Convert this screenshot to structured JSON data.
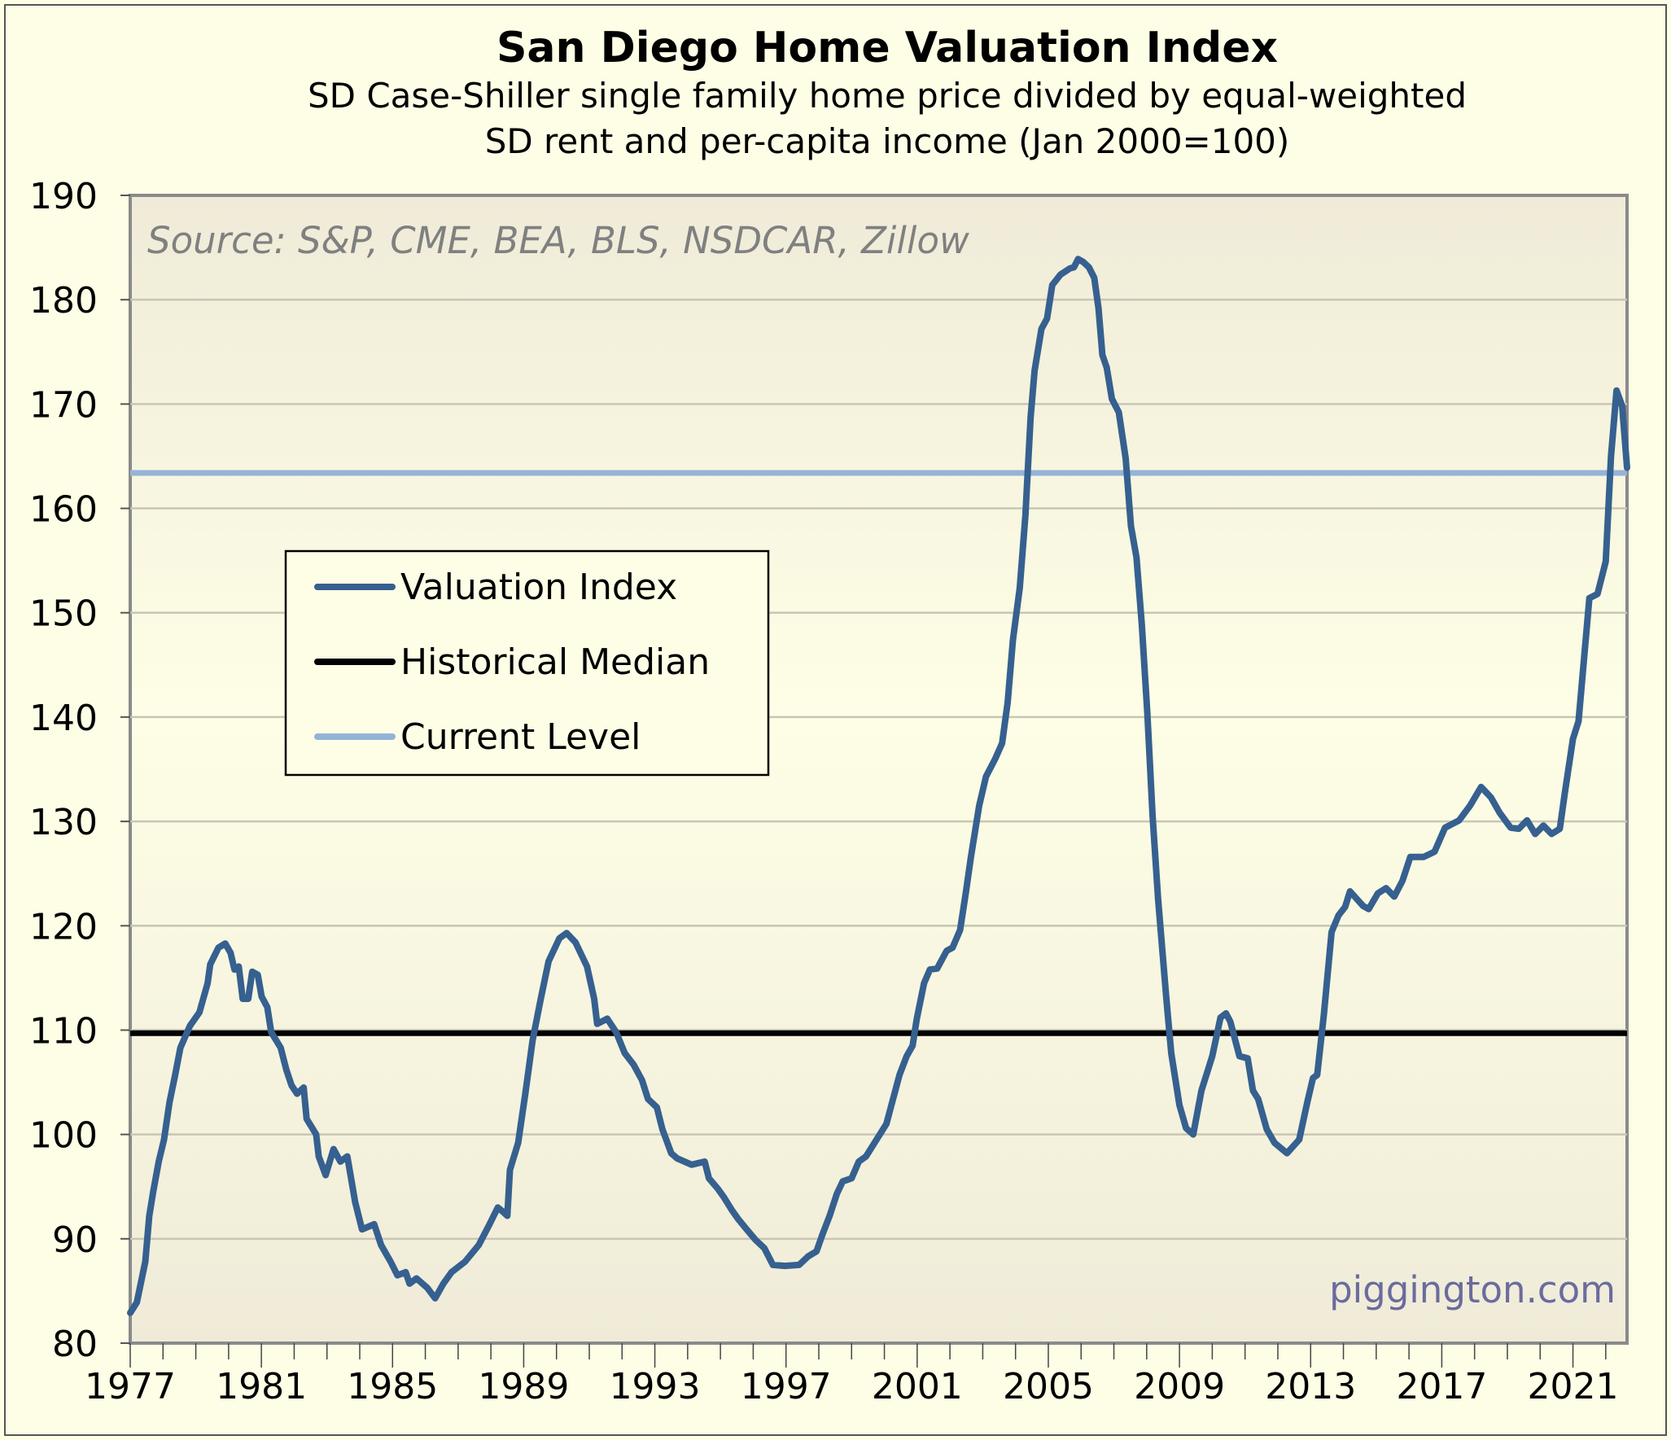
{
  "chart_data": {
    "type": "line",
    "title": "San Diego Home Valuation Index",
    "subtitle": [
      "SD Case-Shiller single family home price divided by equal-weighted",
      "SD rent and per-capita income (Jan 2000=100)"
    ],
    "source_note": "Source: S&P, CME, BEA, BLS, NSDCAR, Zillow",
    "watermark": "piggington.com",
    "xlabel": "",
    "ylabel": "",
    "xlim": [
      1977,
      2022.65
    ],
    "ylim": [
      80,
      190
    ],
    "x_ticks": [
      "1977",
      "1981",
      "1985",
      "1989",
      "1993",
      "1997",
      "2001",
      "2005",
      "2009",
      "2013",
      "2017",
      "2021"
    ],
    "y_ticks": [
      "80",
      "90",
      "100",
      "110",
      "120",
      "130",
      "140",
      "150",
      "160",
      "170",
      "180",
      "190"
    ],
    "grid": "horizontal",
    "legend": {
      "placement": "upper-left",
      "entries": [
        "Valuation Index",
        "Historical Median",
        "Current Level"
      ]
    },
    "colors": {
      "valuation": "#36608f",
      "median": "#000000",
      "current": "#95b3d7",
      "watermark": "#6b6b9e",
      "source": "#808080"
    },
    "series": [
      {
        "name": "Valuation Index",
        "type": "line",
        "points": [
          [
            1977.0,
            82.9
          ],
          [
            1977.2,
            83.9
          ],
          [
            1977.46,
            87.8
          ],
          [
            1977.58,
            92.2
          ],
          [
            1977.7,
            94.5
          ],
          [
            1977.87,
            97.4
          ],
          [
            1978.03,
            99.5
          ],
          [
            1978.2,
            103.1
          ],
          [
            1978.37,
            105.7
          ],
          [
            1978.53,
            108.3
          ],
          [
            1978.82,
            110.4
          ],
          [
            1979.11,
            111.7
          ],
          [
            1979.36,
            114.5
          ],
          [
            1979.44,
            116.3
          ],
          [
            1979.69,
            117.9
          ],
          [
            1979.9,
            118.3
          ],
          [
            1980.06,
            117.4
          ],
          [
            1980.18,
            115.8
          ],
          [
            1980.31,
            116.1
          ],
          [
            1980.43,
            113.0
          ],
          [
            1980.6,
            113.0
          ],
          [
            1980.72,
            115.6
          ],
          [
            1980.89,
            115.3
          ],
          [
            1981.01,
            113.2
          ],
          [
            1981.18,
            112.2
          ],
          [
            1981.3,
            109.8
          ],
          [
            1981.59,
            108.3
          ],
          [
            1981.76,
            106.2
          ],
          [
            1981.92,
            104.7
          ],
          [
            1982.09,
            103.9
          ],
          [
            1982.29,
            104.5
          ],
          [
            1982.38,
            101.5
          ],
          [
            1982.67,
            100.0
          ],
          [
            1982.75,
            97.9
          ],
          [
            1982.96,
            96.1
          ],
          [
            1983.2,
            98.6
          ],
          [
            1983.41,
            97.4
          ],
          [
            1983.62,
            97.9
          ],
          [
            1983.86,
            93.5
          ],
          [
            1984.07,
            90.9
          ],
          [
            1984.44,
            91.4
          ],
          [
            1984.65,
            89.4
          ],
          [
            1984.94,
            87.8
          ],
          [
            1985.15,
            86.5
          ],
          [
            1985.4,
            86.8
          ],
          [
            1985.52,
            85.7
          ],
          [
            1985.73,
            86.2
          ],
          [
            1986.06,
            85.3
          ],
          [
            1986.3,
            84.3
          ],
          [
            1986.55,
            85.7
          ],
          [
            1986.8,
            86.8
          ],
          [
            1987.21,
            87.8
          ],
          [
            1987.63,
            89.4
          ],
          [
            1987.96,
            91.4
          ],
          [
            1988.21,
            93.0
          ],
          [
            1988.33,
            92.7
          ],
          [
            1988.5,
            92.2
          ],
          [
            1988.58,
            96.6
          ],
          [
            1988.83,
            99.2
          ],
          [
            1989.05,
            103.9
          ],
          [
            1989.27,
            109.0
          ],
          [
            1989.52,
            113.0
          ],
          [
            1989.76,
            116.6
          ],
          [
            1990.09,
            118.8
          ],
          [
            1990.31,
            119.3
          ],
          [
            1990.58,
            118.4
          ],
          [
            1990.93,
            116.1
          ],
          [
            1991.15,
            113.0
          ],
          [
            1991.24,
            110.6
          ],
          [
            1991.55,
            111.1
          ],
          [
            1991.82,
            109.8
          ],
          [
            1992.08,
            107.8
          ],
          [
            1992.35,
            106.7
          ],
          [
            1992.61,
            105.2
          ],
          [
            1992.79,
            103.4
          ],
          [
            1993.06,
            102.6
          ],
          [
            1993.23,
            100.5
          ],
          [
            1993.5,
            98.2
          ],
          [
            1993.68,
            97.7
          ],
          [
            1994.12,
            97.1
          ],
          [
            1994.52,
            97.4
          ],
          [
            1994.65,
            95.8
          ],
          [
            1994.92,
            94.8
          ],
          [
            1995.1,
            94.0
          ],
          [
            1995.36,
            92.7
          ],
          [
            1995.54,
            91.9
          ],
          [
            1995.8,
            90.9
          ],
          [
            1996.07,
            89.9
          ],
          [
            1996.34,
            89.1
          ],
          [
            1996.6,
            87.5
          ],
          [
            1996.96,
            87.4
          ],
          [
            1997.4,
            87.5
          ],
          [
            1997.67,
            88.3
          ],
          [
            1997.93,
            88.8
          ],
          [
            1998.11,
            90.4
          ],
          [
            1998.33,
            92.2
          ],
          [
            1998.55,
            94.3
          ],
          [
            1998.73,
            95.5
          ],
          [
            1999.0,
            95.8
          ],
          [
            1999.22,
            97.4
          ],
          [
            1999.44,
            97.9
          ],
          [
            1999.7,
            99.2
          ],
          [
            2000.06,
            101.0
          ],
          [
            2000.24,
            103.1
          ],
          [
            2000.46,
            105.7
          ],
          [
            2000.68,
            107.5
          ],
          [
            2000.86,
            108.5
          ],
          [
            2000.99,
            111.1
          ],
          [
            2001.21,
            114.5
          ],
          [
            2001.39,
            115.8
          ],
          [
            2001.61,
            115.9
          ],
          [
            2001.9,
            117.6
          ],
          [
            2002.08,
            117.9
          ],
          [
            2002.31,
            119.6
          ],
          [
            2002.48,
            123.1
          ],
          [
            2002.64,
            126.6
          ],
          [
            2002.89,
            131.5
          ],
          [
            2003.1,
            134.3
          ],
          [
            2003.38,
            136.0
          ],
          [
            2003.59,
            137.5
          ],
          [
            2003.76,
            141.4
          ],
          [
            2003.92,
            147.4
          ],
          [
            2004.13,
            152.4
          ],
          [
            2004.3,
            159.3
          ],
          [
            2004.46,
            168.7
          ],
          [
            2004.58,
            173.2
          ],
          [
            2004.79,
            177.2
          ],
          [
            2004.96,
            178.2
          ],
          [
            2005.12,
            181.4
          ],
          [
            2005.37,
            182.4
          ],
          [
            2005.66,
            183.0
          ],
          [
            2005.78,
            183.1
          ],
          [
            2005.91,
            183.9
          ],
          [
            2006.07,
            183.6
          ],
          [
            2006.24,
            183.1
          ],
          [
            2006.4,
            182.1
          ],
          [
            2006.53,
            179.2
          ],
          [
            2006.65,
            174.7
          ],
          [
            2006.78,
            173.5
          ],
          [
            2006.94,
            170.5
          ],
          [
            2007.15,
            169.2
          ],
          [
            2007.36,
            164.8
          ],
          [
            2007.52,
            158.3
          ],
          [
            2007.69,
            155.3
          ],
          [
            2007.85,
            148.9
          ],
          [
            2008.02,
            140.4
          ],
          [
            2008.18,
            130.5
          ],
          [
            2008.35,
            122.5
          ],
          [
            2008.6,
            113.0
          ],
          [
            2008.75,
            107.8
          ],
          [
            2009.0,
            102.8
          ],
          [
            2009.2,
            100.6
          ],
          [
            2009.42,
            100.0
          ],
          [
            2009.67,
            104.2
          ],
          [
            2010.0,
            107.5
          ],
          [
            2010.25,
            111.2
          ],
          [
            2010.42,
            111.6
          ],
          [
            2010.55,
            110.8
          ],
          [
            2010.83,
            107.5
          ],
          [
            2011.08,
            107.3
          ],
          [
            2011.24,
            104.2
          ],
          [
            2011.4,
            103.4
          ],
          [
            2011.66,
            100.5
          ],
          [
            2011.9,
            99.2
          ],
          [
            2012.28,
            98.2
          ],
          [
            2012.65,
            99.5
          ],
          [
            2012.9,
            103.1
          ],
          [
            2013.07,
            105.4
          ],
          [
            2013.2,
            105.7
          ],
          [
            2013.4,
            111.4
          ],
          [
            2013.64,
            119.4
          ],
          [
            2013.85,
            121.0
          ],
          [
            2014.05,
            121.8
          ],
          [
            2014.2,
            123.3
          ],
          [
            2014.6,
            121.9
          ],
          [
            2014.77,
            121.6
          ],
          [
            2015.05,
            123.1
          ],
          [
            2015.3,
            123.6
          ],
          [
            2015.55,
            122.8
          ],
          [
            2015.8,
            124.3
          ],
          [
            2016.04,
            126.6
          ],
          [
            2016.45,
            126.6
          ],
          [
            2016.78,
            127.1
          ],
          [
            2017.1,
            129.4
          ],
          [
            2017.53,
            130.1
          ],
          [
            2017.86,
            131.5
          ],
          [
            2018.2,
            133.3
          ],
          [
            2018.5,
            132.3
          ],
          [
            2018.77,
            130.8
          ],
          [
            2019.1,
            129.4
          ],
          [
            2019.35,
            129.3
          ],
          [
            2019.6,
            130.1
          ],
          [
            2019.85,
            128.8
          ],
          [
            2020.1,
            129.6
          ],
          [
            2020.35,
            128.8
          ],
          [
            2020.6,
            129.3
          ],
          [
            2020.75,
            132.7
          ],
          [
            2021.0,
            137.9
          ],
          [
            2021.17,
            139.6
          ],
          [
            2021.5,
            151.4
          ],
          [
            2021.75,
            151.8
          ],
          [
            2022.0,
            154.9
          ],
          [
            2022.16,
            165.0
          ],
          [
            2022.33,
            171.3
          ],
          [
            2022.5,
            169.8
          ],
          [
            2022.65,
            163.9
          ]
        ]
      },
      {
        "name": "Historical Median",
        "type": "hline",
        "value": 109.7
      },
      {
        "name": "Current Level",
        "type": "hline",
        "value": 163.4
      }
    ]
  }
}
